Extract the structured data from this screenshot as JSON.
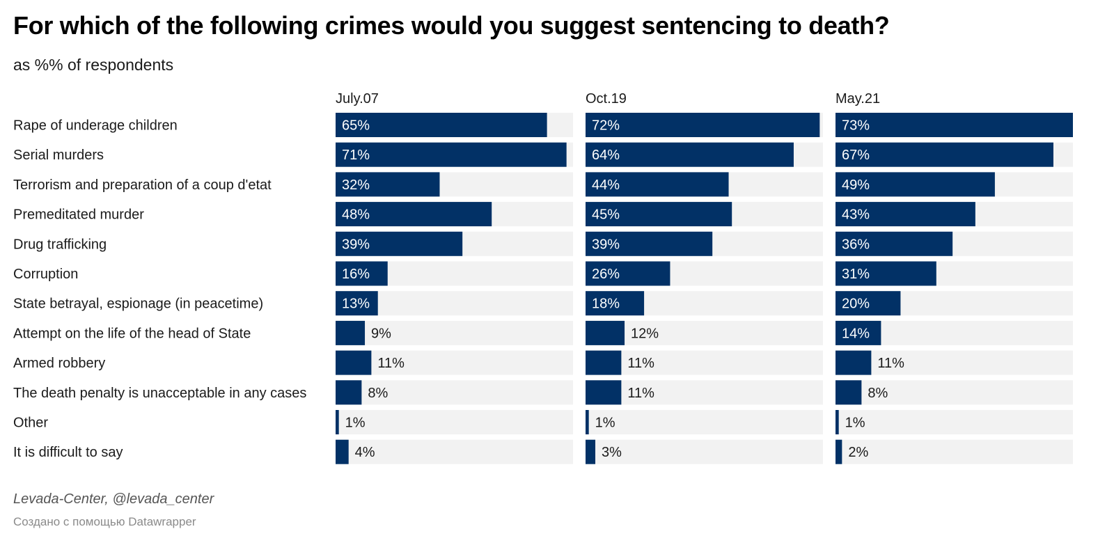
{
  "title": "For which of the following crimes would you suggest sentencing to death?",
  "subtitle": "as %% of respondents",
  "source": "Levada-Center, @levada_center",
  "credit": "Создано с помощью Datawrapper",
  "colors": {
    "bar": "#023166",
    "track": "#f2f2f2",
    "label_inside": "#ffffff",
    "label_outside": "#1a1a1a"
  },
  "chart_data": {
    "type": "bar",
    "orientation": "horizontal",
    "panels": "small-multiples",
    "categories": [
      "Rape of underage children",
      "Serial murders",
      "Terrorism and preparation of a coup d'etat",
      "Premeditated murder",
      "Drug trafficking",
      "Corruption",
      "State betrayal, espionage (in peacetime)",
      "Attempt on the life of the head of State",
      "Armed robbery",
      "The death penalty is unacceptable in any cases",
      "Other",
      "It is difficult to say"
    ],
    "series": [
      {
        "name": "July.07",
        "values": [
          65,
          71,
          32,
          48,
          39,
          16,
          13,
          9,
          11,
          8,
          1,
          4
        ]
      },
      {
        "name": "Oct.19",
        "values": [
          72,
          64,
          44,
          45,
          39,
          26,
          18,
          12,
          11,
          11,
          1,
          3
        ]
      },
      {
        "name": "May.21",
        "values": [
          73,
          67,
          49,
          43,
          36,
          31,
          20,
          14,
          11,
          8,
          1,
          2
        ]
      }
    ],
    "value_suffix": "%",
    "xlim": [
      0,
      73
    ],
    "grid": false,
    "legend": "none"
  }
}
